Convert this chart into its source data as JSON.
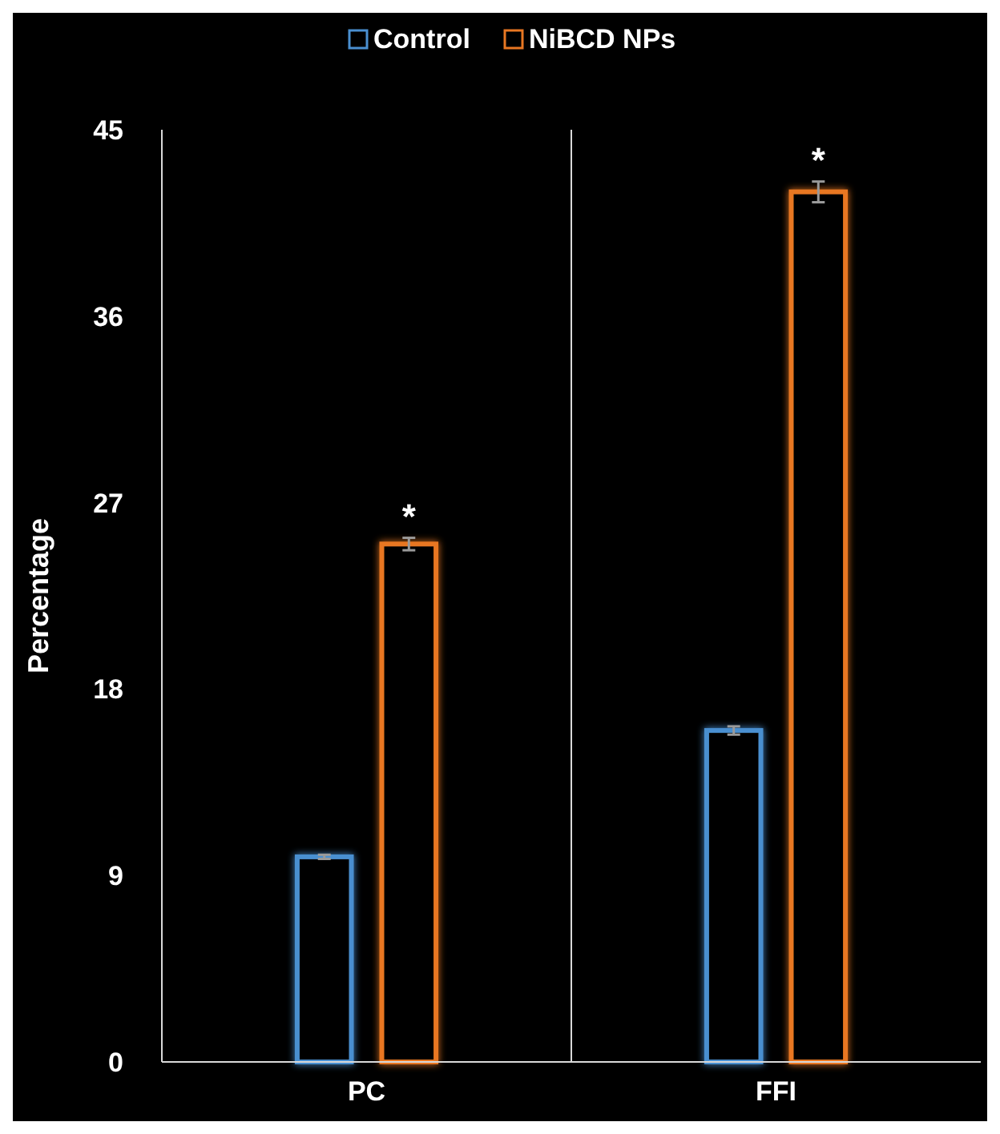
{
  "chart_data": {
    "type": "bar",
    "ylabel": "Percentage",
    "categories": [
      "PC",
      "FFI"
    ],
    "series": [
      {
        "name": "Control",
        "color": "#4a8fd0",
        "values": [
          9.9,
          16.0
        ],
        "errors": [
          0.1,
          0.2
        ]
      },
      {
        "name": "NiBCD NPs",
        "color": "#e87722",
        "values": [
          25.0,
          42.0
        ],
        "errors": [
          0.3,
          0.5
        ]
      }
    ],
    "ylim": [
      0,
      45
    ],
    "yticks": [
      0,
      9,
      18,
      27,
      36,
      45
    ],
    "grid": false,
    "legend": "top",
    "annotations": [
      "*",
      "*"
    ]
  }
}
